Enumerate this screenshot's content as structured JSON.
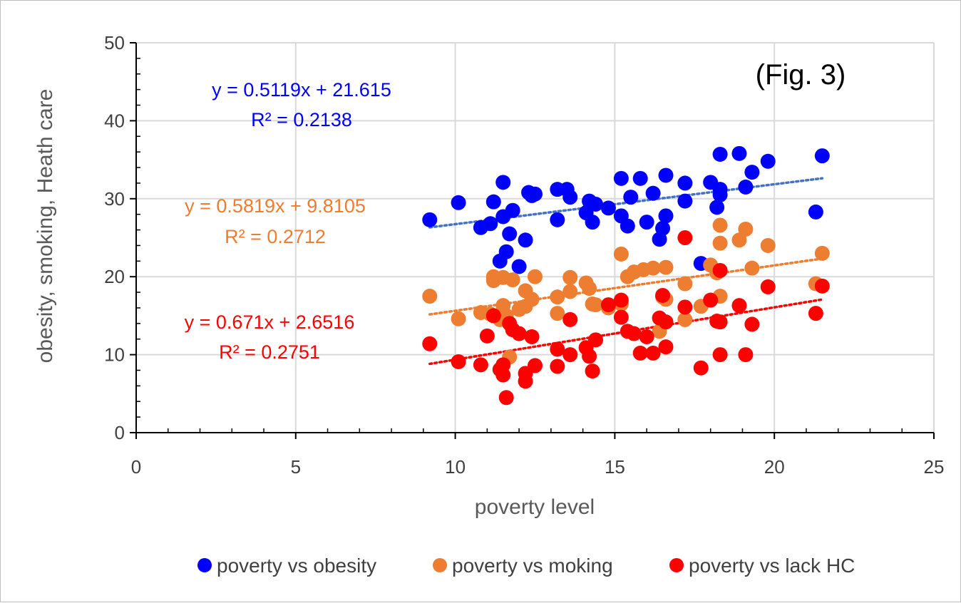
{
  "chart_data": {
    "type": "scatter",
    "annotation": "(Fig. 3)",
    "xlabel": "poverty level",
    "ylabel": "obesity, smoking, Heath care",
    "xlim": [
      0,
      25
    ],
    "ylim": [
      0,
      50
    ],
    "x_ticks": [
      "0",
      "5",
      "10",
      "15",
      "20",
      "25"
    ],
    "y_ticks": [
      "0",
      "10",
      "20",
      "30",
      "40",
      "50"
    ],
    "grid": true,
    "legend_position": "bottom",
    "series": [
      {
        "name": "poverty vs obesity",
        "color": "#0000ff",
        "trend_color": "#4472c4",
        "trend": {
          "slope": 0.5119,
          "intercept": 21.615,
          "x_range": [
            9.2,
            21.5
          ]
        },
        "equation": "y = 0.5119x + 21.615",
        "r2": "R² = 0.2138",
        "points": [
          [
            9.2,
            27.3
          ],
          [
            10.1,
            29.5
          ],
          [
            10.8,
            26.3
          ],
          [
            11.1,
            26.8
          ],
          [
            11.2,
            29.6
          ],
          [
            11.4,
            22
          ],
          [
            11.5,
            27.7
          ],
          [
            11.5,
            32.1
          ],
          [
            11.6,
            23.2
          ],
          [
            11.7,
            25.5
          ],
          [
            11.8,
            28.5
          ],
          [
            12.0,
            21.3
          ],
          [
            12.2,
            24.7
          ],
          [
            12.3,
            30.8
          ],
          [
            12.4,
            30.4
          ],
          [
            12.5,
            30.6
          ],
          [
            13.2,
            27.3
          ],
          [
            13.2,
            31.2
          ],
          [
            13.5,
            31.2
          ],
          [
            13.6,
            30.2
          ],
          [
            14.1,
            28.2
          ],
          [
            14.2,
            29.7
          ],
          [
            14.3,
            27
          ],
          [
            14.4,
            29.3
          ],
          [
            14.8,
            28.8
          ],
          [
            15.2,
            32.6
          ],
          [
            15.2,
            27.8
          ],
          [
            15.4,
            26.5
          ],
          [
            15.5,
            30.2
          ],
          [
            15.8,
            32.6
          ],
          [
            16.0,
            27
          ],
          [
            16.2,
            30.7
          ],
          [
            16.4,
            24.8
          ],
          [
            16.5,
            26.2
          ],
          [
            16.6,
            33
          ],
          [
            16.6,
            27.8
          ],
          [
            17.2,
            32
          ],
          [
            17.2,
            29.7
          ],
          [
            17.7,
            21.7
          ],
          [
            18.0,
            32.1
          ],
          [
            18.2,
            28.9
          ],
          [
            18.3,
            35.7
          ],
          [
            18.3,
            31.2
          ],
          [
            18.3,
            30.5
          ],
          [
            18.9,
            35.8
          ],
          [
            19.1,
            31.5
          ],
          [
            19.3,
            33.4
          ],
          [
            19.8,
            34.8
          ],
          [
            21.3,
            28.3
          ],
          [
            21.5,
            35.5
          ]
        ]
      },
      {
        "name": "poverty vs moking",
        "color": "#ed7d31",
        "trend_color": "#ed7d31",
        "trend": {
          "slope": 0.5819,
          "intercept": 9.8105,
          "x_range": [
            9.2,
            21.5
          ]
        },
        "equation": "y = 0.5819x + 9.8105",
        "r2": "R² = 0.2712",
        "points": [
          [
            9.2,
            17.5
          ],
          [
            10.1,
            14.6
          ],
          [
            10.8,
            15.4
          ],
          [
            11.1,
            15.2
          ],
          [
            11.2,
            19.5
          ],
          [
            11.2,
            20
          ],
          [
            11.4,
            14.5
          ],
          [
            11.5,
            16.3
          ],
          [
            11.5,
            19.9
          ],
          [
            11.6,
            15
          ],
          [
            11.7,
            9.7
          ],
          [
            11.8,
            19.6
          ],
          [
            12.0,
            15.8
          ],
          [
            12.2,
            18.2
          ],
          [
            12.2,
            16.2
          ],
          [
            12.4,
            17.1
          ],
          [
            12.5,
            20
          ],
          [
            13.2,
            17.4
          ],
          [
            13.2,
            15.3
          ],
          [
            13.6,
            19.9
          ],
          [
            13.6,
            18.1
          ],
          [
            14.1,
            19.2
          ],
          [
            14.2,
            18.5
          ],
          [
            14.3,
            16.5
          ],
          [
            14.4,
            16.4
          ],
          [
            14.8,
            16
          ],
          [
            15.2,
            22.9
          ],
          [
            15.2,
            16.5
          ],
          [
            15.4,
            20
          ],
          [
            15.6,
            20.6
          ],
          [
            15.9,
            20.9
          ],
          [
            16.2,
            21.1
          ],
          [
            16.4,
            13
          ],
          [
            16.5,
            17.4
          ],
          [
            16.6,
            21.2
          ],
          [
            16.6,
            17.1
          ],
          [
            17.2,
            19.1
          ],
          [
            17.2,
            14.5
          ],
          [
            17.7,
            16.2
          ],
          [
            18.0,
            21.5
          ],
          [
            18.2,
            20.5
          ],
          [
            18.3,
            26.6
          ],
          [
            18.3,
            24.3
          ],
          [
            18.3,
            17.5
          ],
          [
            18.9,
            24.7
          ],
          [
            19.1,
            26.1
          ],
          [
            19.3,
            21.1
          ],
          [
            19.8,
            24
          ],
          [
            21.3,
            19.1
          ],
          [
            21.5,
            23
          ]
        ]
      },
      {
        "name": "poverty vs lack HC",
        "color": "#ff0000",
        "trend_color": "#ff0000",
        "trend": {
          "slope": 0.671,
          "intercept": 2.6516,
          "x_range": [
            9.2,
            21.5
          ]
        },
        "equation": "y = 0.671x + 2.6516",
        "r2": "R² = 0.2751",
        "points": [
          [
            9.2,
            11.4
          ],
          [
            10.1,
            9.1
          ],
          [
            10.8,
            8.7
          ],
          [
            11.0,
            12.4
          ],
          [
            11.2,
            15
          ],
          [
            11.4,
            8.1
          ],
          [
            11.5,
            7.4
          ],
          [
            11.5,
            8.7
          ],
          [
            11.6,
            4.5
          ],
          [
            11.7,
            14
          ],
          [
            11.8,
            13.2
          ],
          [
            12.0,
            12.7
          ],
          [
            12.2,
            7.6
          ],
          [
            12.2,
            6.6
          ],
          [
            12.4,
            12.3
          ],
          [
            12.5,
            8.6
          ],
          [
            13.2,
            10.7
          ],
          [
            13.2,
            8.5
          ],
          [
            13.6,
            14.5
          ],
          [
            13.6,
            10
          ],
          [
            14.1,
            10.9
          ],
          [
            14.2,
            9.8
          ],
          [
            14.3,
            7.9
          ],
          [
            14.4,
            11.9
          ],
          [
            14.8,
            16.4
          ],
          [
            15.2,
            14.8
          ],
          [
            15.2,
            17
          ],
          [
            15.4,
            13
          ],
          [
            15.6,
            12.7
          ],
          [
            15.8,
            10.2
          ],
          [
            16.0,
            12.3
          ],
          [
            16.2,
            10.2
          ],
          [
            16.4,
            14.7
          ],
          [
            16.5,
            17.6
          ],
          [
            16.6,
            11
          ],
          [
            16.6,
            14.2
          ],
          [
            17.2,
            25
          ],
          [
            17.2,
            16.1
          ],
          [
            17.7,
            8.3
          ],
          [
            18.0,
            17
          ],
          [
            18.2,
            14.3
          ],
          [
            18.3,
            20.8
          ],
          [
            18.3,
            14.2
          ],
          [
            18.3,
            10
          ],
          [
            18.9,
            16.3
          ],
          [
            19.1,
            10
          ],
          [
            19.3,
            13.9
          ],
          [
            19.8,
            18.7
          ],
          [
            21.3,
            15.3
          ],
          [
            21.5,
            18.8
          ]
        ]
      }
    ]
  }
}
